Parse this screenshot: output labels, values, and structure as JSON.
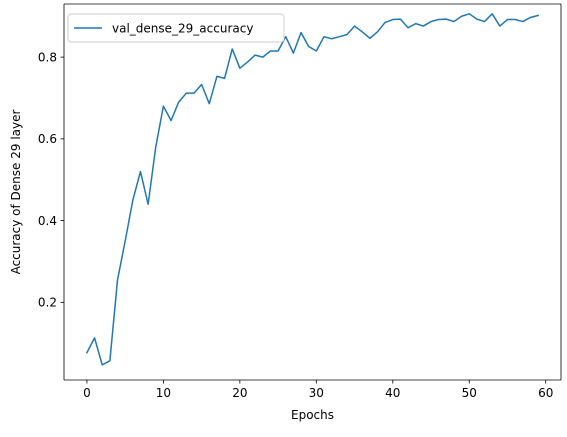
{
  "chart_data": {
    "type": "line",
    "title": "",
    "xlabel": "Epochs",
    "ylabel": "Accuracy of Dense 29 layer",
    "xlim": [
      -3,
      62
    ],
    "ylim": [
      0.01,
      0.93
    ],
    "xticks": [
      0,
      10,
      20,
      30,
      40,
      50,
      60
    ],
    "yticks": [
      0.2,
      0.4,
      0.6,
      0.8
    ],
    "grid": false,
    "legend_position": "upper-left",
    "series": [
      {
        "name": "val_dense_29_accuracy",
        "color": "#1f77b4",
        "x": [
          0,
          1,
          2,
          3,
          4,
          5,
          6,
          7,
          8,
          9,
          10,
          11,
          12,
          13,
          14,
          15,
          16,
          17,
          18,
          19,
          20,
          21,
          22,
          23,
          24,
          25,
          26,
          27,
          28,
          29,
          30,
          31,
          32,
          33,
          34,
          35,
          36,
          37,
          38,
          39,
          40,
          41,
          42,
          43,
          44,
          45,
          46,
          47,
          48,
          49,
          50,
          51,
          52,
          53,
          54,
          55,
          56,
          57,
          58,
          59
        ],
        "values": [
          0.077,
          0.113,
          0.047,
          0.057,
          0.255,
          0.35,
          0.45,
          0.52,
          0.44,
          0.58,
          0.68,
          0.645,
          0.69,
          0.712,
          0.712,
          0.733,
          0.686,
          0.753,
          0.748,
          0.82,
          0.773,
          0.788,
          0.805,
          0.8,
          0.815,
          0.815,
          0.85,
          0.81,
          0.86,
          0.826,
          0.815,
          0.85,
          0.845,
          0.85,
          0.855,
          0.876,
          0.862,
          0.846,
          0.862,
          0.885,
          0.892,
          0.893,
          0.872,
          0.882,
          0.876,
          0.887,
          0.892,
          0.893,
          0.887,
          0.9,
          0.906,
          0.893,
          0.887,
          0.906,
          0.876,
          0.892,
          0.892,
          0.887,
          0.897,
          0.902
        ]
      }
    ]
  }
}
